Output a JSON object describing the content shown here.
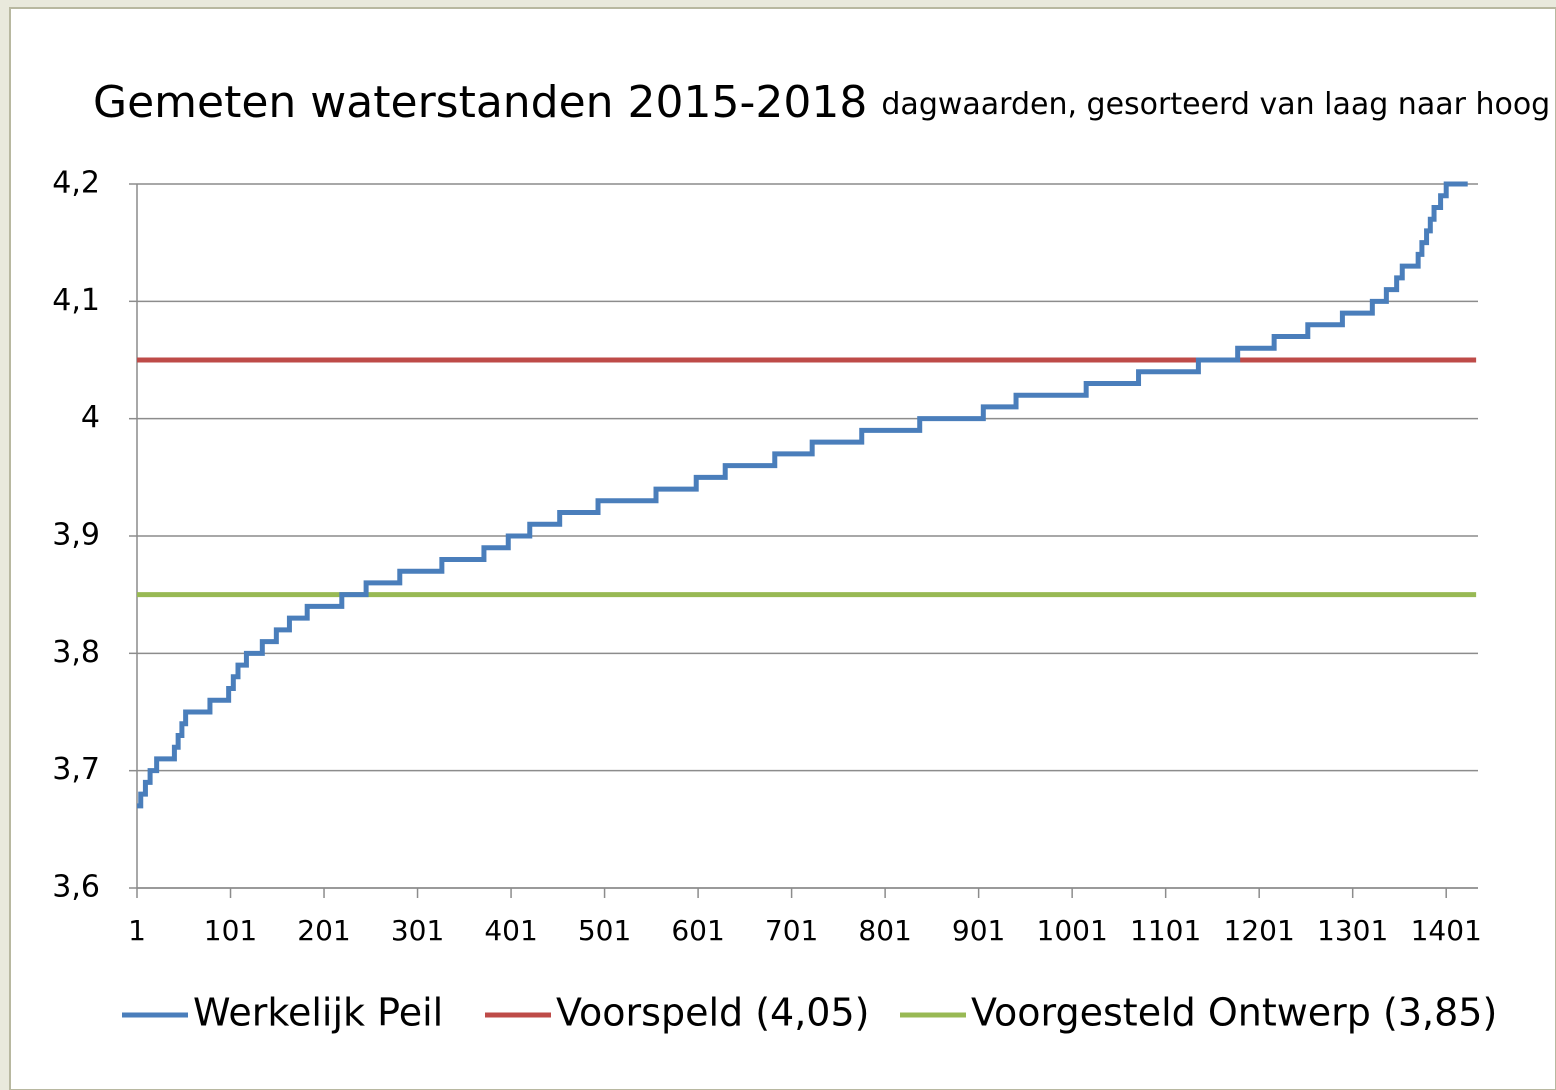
{
  "chart_data": {
    "type": "line",
    "title": "Gemeten waterstanden 2015-2018",
    "subtitle": "dagwaarden, gesorteerd van laag naar hoog",
    "xlim": [
      1,
      1435
    ],
    "xticks": [
      1,
      101,
      201,
      301,
      401,
      501,
      601,
      701,
      801,
      901,
      1001,
      1101,
      1201,
      1301,
      1401
    ],
    "ylim": [
      3.6,
      4.2
    ],
    "yticks": [
      {
        "value": 3.6,
        "label": "3,6"
      },
      {
        "value": 3.7,
        "label": "3,7"
      },
      {
        "value": 3.8,
        "label": "3,8"
      },
      {
        "value": 3.9,
        "label": "3,9"
      },
      4,
      {
        "value": 4.1,
        "label": "4,1"
      },
      {
        "value": 4.2,
        "label": "4,2"
      }
    ],
    "grid": true,
    "legend": "bottom",
    "series": [
      {
        "name": "Werkelijk Peil",
        "color": "#4a7ebb",
        "x": [
          1,
          5,
          5,
          10,
          10,
          15,
          15,
          22,
          22,
          41,
          41,
          45,
          45,
          49,
          49,
          53,
          53,
          79,
          79,
          99,
          99,
          104,
          104,
          109,
          109,
          118,
          118,
          135,
          135,
          150,
          150,
          164,
          164,
          183,
          183,
          220,
          220,
          246,
          246,
          282,
          282,
          327,
          327,
          372,
          372,
          398,
          398,
          421,
          421,
          453,
          453,
          494,
          494,
          556,
          556,
          599,
          599,
          630,
          630,
          683,
          683,
          723,
          723,
          776,
          776,
          838,
          838,
          906,
          906,
          941,
          941,
          1016,
          1016,
          1072,
          1072,
          1136,
          1136,
          1178,
          1178,
          1217,
          1217,
          1253,
          1253,
          1290,
          1290,
          1322,
          1322,
          1337,
          1337,
          1348,
          1348,
          1354,
          1354,
          1371,
          1371,
          1375,
          1375,
          1380,
          1380,
          1384,
          1384,
          1388,
          1388,
          1395,
          1395,
          1401,
          1401,
          1424
        ],
        "values": [
          3.67,
          3.67,
          3.68,
          3.68,
          3.69,
          3.69,
          3.7,
          3.7,
          3.71,
          3.71,
          3.72,
          3.72,
          3.73,
          3.73,
          3.74,
          3.74,
          3.75,
          3.75,
          3.76,
          3.76,
          3.77,
          3.77,
          3.78,
          3.78,
          3.79,
          3.79,
          3.8,
          3.8,
          3.81,
          3.81,
          3.82,
          3.82,
          3.83,
          3.83,
          3.84,
          3.84,
          3.85,
          3.85,
          3.86,
          3.86,
          3.87,
          3.87,
          3.88,
          3.88,
          3.89,
          3.89,
          3.9,
          3.9,
          3.91,
          3.91,
          3.92,
          3.92,
          3.93,
          3.93,
          3.94,
          3.94,
          3.95,
          3.95,
          3.96,
          3.96,
          3.97,
          3.97,
          3.98,
          3.98,
          3.99,
          3.99,
          4,
          4,
          4.01,
          4.01,
          4.02,
          4.02,
          4.03,
          4.03,
          4.04,
          4.04,
          4.05,
          4.05,
          4.06,
          4.06,
          4.07,
          4.07,
          4.08,
          4.08,
          4.09,
          4.09,
          4.1,
          4.1,
          4.11,
          4.11,
          4.12,
          4.12,
          4.13,
          4.13,
          4.14,
          4.14,
          4.15,
          4.15,
          4.16,
          4.16,
          4.17,
          4.17,
          4.18,
          4.18,
          4.19,
          4.19,
          4.2,
          4.2
        ]
      },
      {
        "name": "Voorspeld (4,05)",
        "color": "#be4b48",
        "x": [
          1,
          1433
        ],
        "values": [
          4.05,
          4.05
        ]
      },
      {
        "name": "Voorgesteld Ontwerp (3,85)",
        "color": "#98b954",
        "x": [
          1,
          1433
        ],
        "values": [
          3.85,
          3.85
        ]
      }
    ]
  }
}
